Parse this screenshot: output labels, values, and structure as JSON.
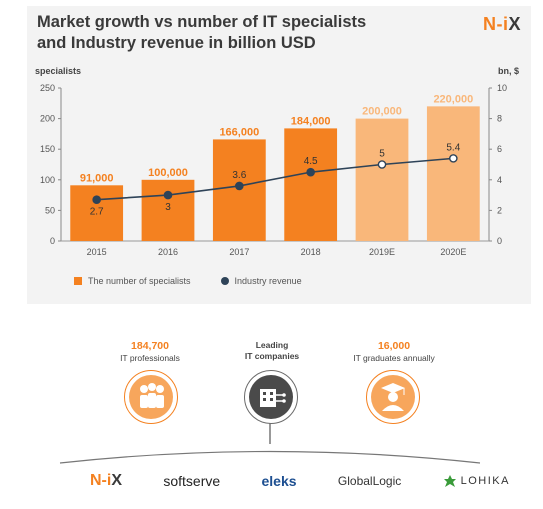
{
  "header": {
    "title_line1": "Market growth vs number of IT specialists",
    "title_line2": "and Industry revenue in billion USD",
    "brand_n": "N-i",
    "brand_x": "X"
  },
  "chart_data": {
    "type": "bar",
    "categories": [
      "2015",
      "2016",
      "2017",
      "2018",
      "2019E",
      "2020E"
    ],
    "series": [
      {
        "name": "The number of specialists",
        "values": [
          91000,
          100000,
          166000,
          184000,
          200000,
          220000
        ],
        "labels": [
          "91,000",
          "100,000",
          "166,000",
          "184,000",
          "200,000",
          "220,000"
        ],
        "colors": [
          "#f48120",
          "#f48120",
          "#f48120",
          "#f48120",
          "#f9b77a",
          "#f9b77a"
        ],
        "axis": "left"
      },
      {
        "name": "Industry revenue",
        "type": "line",
        "values": [
          2.7,
          3,
          3.6,
          4.5,
          5,
          5.4
        ],
        "labels": [
          "2.7",
          "3",
          "3.6",
          "4.5",
          "5",
          "5.4"
        ],
        "color": "#2e4358",
        "axis": "right"
      }
    ],
    "ylabel_left": "specialists",
    "ylabel_right": "bn, $",
    "ylim_left": [
      0,
      250000
    ],
    "ylim_right": [
      0,
      10
    ],
    "yticks_left": [
      "0",
      "50",
      "100",
      "150",
      "200",
      "250"
    ],
    "yticks_right": [
      "0",
      "2",
      "4",
      "6",
      "8",
      "10"
    ],
    "grid": false,
    "legend_position": "bottom-left"
  },
  "stats": {
    "professionals_num": "184,700",
    "professionals_lbl": "IT professionals",
    "companies_line1": "Leading",
    "companies_line2": "IT companies",
    "graduates_num": "16,000",
    "graduates_lbl": "IT graduates annually"
  },
  "logos": {
    "nix_n": "N-i",
    "nix_x": "X",
    "softserve": "softserve",
    "eleks": "eleks",
    "globallogic": "GlobalLogic",
    "lohika": "LOHIKA"
  },
  "colors": {
    "accent": "#f48120",
    "accent_light": "#f9b77a",
    "line": "#2e4358"
  }
}
